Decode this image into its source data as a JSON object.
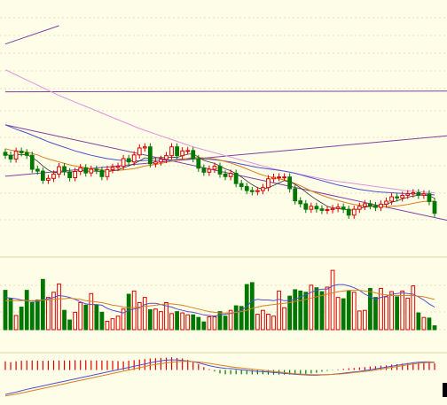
{
  "chart_data": [
    {
      "panel": "price",
      "type": "candlestick",
      "title": "",
      "xlabel": "",
      "ylabel": "",
      "x": [
        0,
        1,
        2,
        3,
        4,
        5,
        6,
        7,
        8,
        9,
        10,
        11,
        12,
        13,
        14,
        15,
        16,
        17,
        18,
        19,
        20,
        21,
        22,
        23,
        24,
        25,
        26,
        27,
        28,
        29,
        30,
        31,
        32,
        33,
        34,
        35,
        36,
        37,
        38,
        39,
        40,
        41,
        42,
        43,
        44,
        45,
        46,
        47,
        48,
        49,
        50,
        51,
        52,
        53,
        54,
        55,
        56,
        57,
        58,
        59,
        60,
        61,
        62,
        63,
        64,
        65,
        66,
        67,
        68,
        69,
        70,
        71,
        72,
        73,
        74,
        75,
        76,
        77,
        78,
        79,
        80
      ],
      "close": [
        57.7,
        56.7,
        58.8,
        58.4,
        57.7,
        53.9,
        53.4,
        50.9,
        51.4,
        52.6,
        54.6,
        53.2,
        51.6,
        53.3,
        54.3,
        52.9,
        53.9,
        53.6,
        51.9,
        53.8,
        54.4,
        54.7,
        56.8,
        55.9,
        57.8,
        59.7,
        60.0,
        55.4,
        55.9,
        56.6,
        57.6,
        60.0,
        57.6,
        58.9,
        59.0,
        56.8,
        54.2,
        53.1,
        53.9,
        54.7,
        52.6,
        51.9,
        52.8,
        50.0,
        49.2,
        48.1,
        47.8,
        48.1,
        48.9,
        51.3,
        51.7,
        51.8,
        51.8,
        48.6,
        45.3,
        44.5,
        43.0,
        43.8,
        43.1,
        42.7,
        42.9,
        43.2,
        43.6,
        43.0,
        41.4,
        43.0,
        43.8,
        44.5,
        44.0,
        43.5,
        44.4,
        45.2,
        46.4,
        46.1,
        46.8,
        47.2,
        47.5,
        46.8,
        47.2,
        45.1,
        41.9
      ],
      "ma_fast": [
        58.0,
        57.6,
        57.9,
        57.9,
        57.9,
        57.1,
        56.1,
        54.8,
        53.7,
        53.0,
        53.1,
        53.2,
        53.1,
        53.3,
        53.6,
        53.4,
        53.4,
        53.4,
        53.2,
        53.2,
        53.5,
        53.7,
        54.3,
        54.8,
        55.4,
        56.2,
        57.0,
        56.9,
        57.0,
        57.1,
        57.0,
        57.2,
        57.1,
        57.6,
        58.0,
        58.1,
        57.2,
        56.3,
        55.9,
        55.5,
        54.8,
        54.0,
        53.5,
        52.7,
        51.8,
        50.7,
        49.7,
        48.9,
        48.5,
        48.9,
        49.5,
        50.2,
        50.8,
        50.5,
        49.8,
        48.8,
        47.7,
        46.6,
        45.6,
        44.7,
        43.8,
        43.4,
        43.2,
        43.0,
        42.8,
        42.8,
        43.2,
        43.6,
        43.8,
        43.9,
        44.1,
        44.4,
        44.9,
        45.3,
        45.8,
        46.3,
        46.6,
        46.8,
        46.9,
        46.7,
        46.0
      ],
      "ma_mid": [
        59.5,
        59.1,
        58.9,
        58.7,
        58.6,
        58.2,
        57.8,
        57.2,
        56.7,
        56.3,
        55.9,
        55.5,
        55.1,
        54.8,
        54.6,
        54.3,
        54.1,
        53.9,
        53.7,
        53.6,
        53.6,
        53.6,
        53.7,
        53.9,
        54.1,
        54.4,
        54.8,
        55.0,
        55.2,
        55.5,
        55.8,
        56.1,
        56.3,
        56.6,
        56.9,
        57.1,
        57.1,
        57.0,
        56.9,
        56.7,
        56.4,
        56.0,
        55.6,
        55.1,
        54.6,
        54.0,
        53.4,
        52.8,
        52.3,
        51.9,
        51.6,
        51.3,
        51.0,
        50.6,
        50.0,
        49.4,
        48.7,
        48.0,
        47.4,
        46.8,
        46.3,
        45.8,
        45.4,
        45.0,
        44.6,
        44.3,
        44.1,
        43.9,
        43.8,
        43.7,
        43.7,
        43.7,
        43.8,
        43.9,
        44.1,
        44.3,
        44.6,
        44.9,
        45.1,
        45.2,
        45.2
      ],
      "ma_slow": [
        66.0,
        65.4,
        64.8,
        64.3,
        63.8,
        63.2,
        62.6,
        62.0,
        61.4,
        60.9,
        60.4,
        59.9,
        59.4,
        58.9,
        58.5,
        58.1,
        57.7,
        57.4,
        57.1,
        56.8,
        56.6,
        56.4,
        56.3,
        56.2,
        56.2,
        56.2,
        56.3,
        56.3,
        56.3,
        56.4,
        56.4,
        56.5,
        56.6,
        56.7,
        56.8,
        56.8,
        56.8,
        56.7,
        56.6,
        56.5,
        56.3,
        56.1,
        55.9,
        55.6,
        55.3,
        55.0,
        54.7,
        54.4,
        54.2,
        54.0,
        53.8,
        53.6,
        53.4,
        53.1,
        52.8,
        52.4,
        52.0,
        51.6,
        51.2,
        50.8,
        50.4,
        50.0,
        49.6,
        49.3,
        49.0,
        48.7,
        48.4,
        48.2,
        48.0,
        47.8,
        47.7,
        47.6,
        47.5,
        47.4,
        47.3,
        47.3,
        47.2,
        47.2,
        47.2,
        47.1,
        46.9
      ],
      "ma_long": [
        81.0,
        80.3,
        79.6,
        78.9,
        78.2,
        77.5,
        76.8,
        76.1,
        75.4,
        74.7,
        74.0,
        73.4,
        72.8,
        72.2,
        71.6,
        71.0,
        70.4,
        69.8,
        69.2,
        68.6,
        68.0,
        67.4,
        66.8,
        66.2,
        65.6,
        65.0,
        64.5,
        64.0,
        63.5,
        63.0,
        62.5,
        62.0,
        61.5,
        61.0,
        60.5,
        60.0,
        59.6,
        59.2,
        58.8,
        58.4,
        58.0,
        57.6,
        57.2,
        56.8,
        56.4,
        56.0,
        55.6,
        55.2,
        54.8,
        54.4,
        54.0,
        53.7,
        53.4,
        53.1,
        52.8,
        52.5,
        52.2,
        51.9,
        51.6,
        51.3,
        51.0,
        50.8,
        50.6,
        50.4,
        50.2,
        50.0,
        49.8,
        49.6,
        49.4,
        49.2,
        49.0,
        48.8,
        48.6,
        48.4,
        48.2,
        48.0,
        47.9,
        47.8,
        47.7,
        47.6,
        47.5
      ],
      "trendlines": [
        {
          "name": "",
          "from": [
            0,
            52.0
          ],
          "to": [
            80,
            63.0
          ]
        },
        {
          "name": "",
          "from": [
            0,
            66.0
          ],
          "to": [
            80,
            40.0
          ]
        },
        {
          "name": "",
          "from": [
            0,
            88.0
          ],
          "to": [
            10,
            93.0
          ]
        },
        {
          "name": "",
          "from": [
            0,
            75.0
          ],
          "to": [
            80,
            75.2
          ]
        }
      ],
      "ylim": [
        30,
        100
      ],
      "grid": true,
      "colors": {
        "up": "#dd0000",
        "down": "#007700",
        "ma_fast": "#333333",
        "ma_mid": "#d88020",
        "ma_slow": "#5050cc",
        "ma_long": "#e090e0",
        "trend": "#8040a0",
        "grid": "#cccc88"
      }
    },
    {
      "panel": "volume",
      "type": "bar",
      "title": "",
      "x": [
        0,
        1,
        2,
        3,
        4,
        5,
        6,
        7,
        8,
        9,
        10,
        11,
        12,
        13,
        14,
        15,
        16,
        17,
        18,
        19,
        20,
        21,
        22,
        23,
        24,
        25,
        26,
        27,
        28,
        29,
        30,
        31,
        32,
        33,
        34,
        35,
        36,
        37,
        38,
        39,
        40,
        41,
        42,
        43,
        44,
        45,
        46,
        47,
        48,
        49,
        50,
        51,
        52,
        53,
        54,
        55,
        56,
        57,
        58,
        59,
        60,
        61,
        62,
        63,
        64,
        65,
        66,
        67,
        68,
        69,
        70,
        71,
        72,
        73,
        74,
        75,
        76,
        77,
        78,
        79,
        80
      ],
      "values": [
        61,
        48,
        22,
        35,
        61,
        42,
        46,
        78,
        50,
        58,
        71,
        30,
        15,
        27,
        42,
        38,
        56,
        38,
        27,
        13,
        17,
        21,
        32,
        55,
        60,
        42,
        50,
        31,
        32,
        28,
        42,
        25,
        28,
        26,
        23,
        23,
        19,
        12,
        20,
        20,
        28,
        21,
        30,
        37,
        36,
        70,
        73,
        24,
        30,
        24,
        21,
        60,
        34,
        52,
        62,
        60,
        58,
        69,
        65,
        59,
        66,
        92,
        50,
        48,
        60,
        58,
        29,
        30,
        64,
        50,
        64,
        51,
        59,
        51,
        60,
        49,
        68,
        26,
        19,
        18,
        6
      ],
      "ma_a": [
        50,
        49,
        48,
        46,
        45,
        44,
        44,
        46,
        48,
        50,
        53,
        52,
        50,
        47,
        43,
        40,
        39,
        39,
        38,
        33,
        30,
        28,
        26,
        30,
        32,
        34,
        39,
        41,
        41,
        39,
        37,
        35,
        32,
        30,
        28,
        27,
        25,
        23,
        22,
        21,
        23,
        24,
        25,
        27,
        30,
        36,
        45,
        47,
        46,
        46,
        45,
        47,
        45,
        45,
        47,
        51,
        54,
        58,
        61,
        63,
        63,
        68,
        70,
        70,
        68,
        65,
        61,
        55,
        51,
        47,
        50,
        52,
        55,
        56,
        57,
        56,
        55,
        51,
        46,
        40,
        35
      ],
      "ma_b": [
        45,
        45,
        45,
        45,
        45,
        45,
        45,
        46,
        46,
        47,
        48,
        48,
        49,
        48,
        47,
        45,
        44,
        43,
        42,
        40,
        38,
        37,
        35,
        34,
        34,
        35,
        36,
        37,
        38,
        39,
        40,
        40,
        39,
        38,
        36,
        34,
        32,
        30,
        28,
        27,
        26,
        26,
        26,
        27,
        28,
        30,
        33,
        35,
        37,
        38,
        39,
        40,
        41,
        42,
        44,
        45,
        47,
        49,
        51,
        53,
        55,
        57,
        59,
        60,
        61,
        61,
        61,
        60,
        59,
        57,
        55,
        54,
        53,
        53,
        53,
        53,
        53,
        52,
        51,
        49,
        47
      ],
      "ylim": [
        0,
        110
      ],
      "colors": {
        "up": "#dd0000",
        "down": "#007700",
        "ma_a": "#5050cc",
        "ma_b": "#d88020"
      }
    },
    {
      "panel": "indicator",
      "type": "bar",
      "title": "",
      "x": [
        0,
        1,
        2,
        3,
        4,
        5,
        6,
        7,
        8,
        9,
        10,
        11,
        12,
        13,
        14,
        15,
        16,
        17,
        18,
        19,
        20,
        21,
        22,
        23,
        24,
        25,
        26,
        27,
        28,
        29,
        30,
        31,
        32,
        33,
        34,
        35,
        36,
        37,
        38,
        39,
        40,
        41,
        42,
        43,
        44,
        45,
        46,
        47,
        48,
        49,
        50,
        51,
        52,
        53,
        54,
        55,
        56,
        57,
        58,
        59,
        60,
        61,
        62,
        63,
        64,
        65,
        66,
        67,
        68,
        69,
        70,
        71,
        72,
        73,
        74,
        75,
        76,
        77,
        78,
        79,
        80
      ],
      "values": [
        3.0,
        2.7,
        3.0,
        3.2,
        3.3,
        3.3,
        3.2,
        3.2,
        3.2,
        3.3,
        3.3,
        3.3,
        3.3,
        3.4,
        3.4,
        3.4,
        3.3,
        3.3,
        3.3,
        3.3,
        3.2,
        3.1,
        3.0,
        3.2,
        3.4,
        3.6,
        3.8,
        4.0,
        4.1,
        4.2,
        4.3,
        4.4,
        4.2,
        4.0,
        3.5,
        3.0,
        2.0,
        1.0,
        0.3,
        -0.5,
        -1.2,
        -1.5,
        -1.5,
        -1.5,
        -1.5,
        -1.5,
        -1.5,
        -1.5,
        -1.5,
        -1.6,
        -1.6,
        -1.6,
        -1.6,
        -1.6,
        -1.6,
        -1.6,
        -1.6,
        -1.2,
        -1.0,
        -0.6,
        -0.3,
        -0.1,
        0.2,
        0.4,
        0.6,
        0.7,
        0.9,
        1.0,
        1.2,
        1.3,
        1.5,
        1.6,
        1.9,
        2.0,
        2.2,
        2.4,
        2.5,
        2.6,
        2.7,
        2.6,
        2.3
      ],
      "dif": [
        -8.5,
        -8.1,
        -7.7,
        -7.2,
        -6.7,
        -6.3,
        -5.9,
        -5.5,
        -5.1,
        -4.7,
        -4.3,
        -3.9,
        -3.5,
        -3.1,
        -2.7,
        -2.3,
        -1.9,
        -1.5,
        -1.1,
        -0.7,
        -0.3,
        0.1,
        0.5,
        0.9,
        1.3,
        1.7,
        2.1,
        2.5,
        2.9,
        3.2,
        3.4,
        3.5,
        3.5,
        3.3,
        3.1,
        2.9,
        2.5,
        2.0,
        1.5,
        1.1,
        0.8,
        0.6,
        0.5,
        0.3,
        0.1,
        -0.1,
        -0.3,
        -0.5,
        -0.6,
        -0.7,
        -0.9,
        -1.0,
        -1.2,
        -1.3,
        -1.5,
        -1.6,
        -1.7,
        -1.8,
        -1.8,
        -1.7,
        -1.6,
        -1.5,
        -1.3,
        -1.1,
        -0.9,
        -0.7,
        -0.5,
        -0.2,
        0.1,
        0.4,
        0.7,
        1.0,
        1.3,
        1.6,
        1.9,
        2.2,
        2.5,
        2.7,
        2.8,
        2.8,
        2.7
      ],
      "dea": [
        -9.0,
        -8.7,
        -8.4,
        -8.0,
        -7.6,
        -7.2,
        -6.8,
        -6.4,
        -6.0,
        -5.6,
        -5.2,
        -4.8,
        -4.4,
        -4.0,
        -3.6,
        -3.2,
        -2.8,
        -2.4,
        -2.0,
        -1.6,
        -1.2,
        -0.8,
        -0.4,
        0.0,
        0.4,
        0.8,
        1.2,
        1.6,
        1.9,
        2.2,
        2.5,
        2.7,
        2.9,
        3.0,
        3.0,
        2.9,
        2.8,
        2.6,
        2.3,
        2.0,
        1.7,
        1.4,
        1.1,
        0.9,
        0.7,
        0.5,
        0.3,
        0.1,
        -0.1,
        -0.3,
        -0.5,
        -0.7,
        -0.9,
        -1.1,
        -1.3,
        -1.4,
        -1.5,
        -1.6,
        -1.6,
        -1.6,
        -1.6,
        -1.5,
        -1.4,
        -1.3,
        -1.1,
        -0.9,
        -0.7,
        -0.5,
        -0.3,
        0.0,
        0.3,
        0.6,
        0.9,
        1.2,
        1.5,
        1.8,
        2.1,
        2.3,
        2.5,
        2.6,
        2.6
      ],
      "ylim": [
        -10,
        6
      ],
      "colors": {
        "up": "#dd0000",
        "down": "#007700",
        "dif": "#5050cc",
        "dea": "#d88020"
      }
    }
  ]
}
